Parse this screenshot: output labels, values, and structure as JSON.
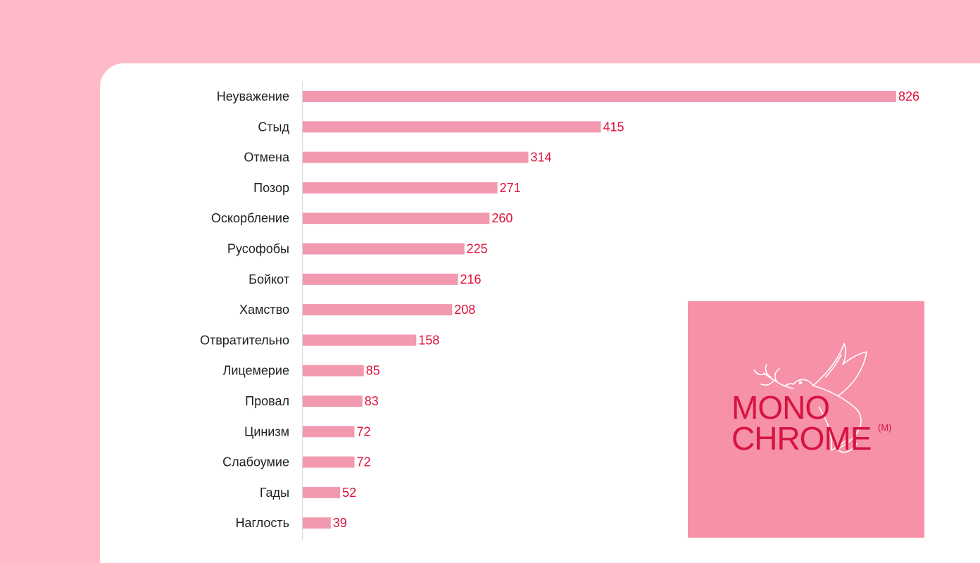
{
  "chart_data": {
    "type": "bar",
    "orientation": "horizontal",
    "categories": [
      "Неуважение",
      "Стыд",
      "Отмена",
      "Позор",
      "Оскорбление",
      "Русофобы",
      "Бойкот",
      "Хамство",
      "Отвратительно",
      "Лицемерие",
      "Провал",
      "Цинизм",
      "Слабоумие",
      "Гады",
      "Наглость"
    ],
    "values": [
      826,
      415,
      314,
      271,
      260,
      225,
      216,
      208,
      158,
      85,
      83,
      72,
      72,
      52,
      39
    ],
    "data_labels": true,
    "grid": false,
    "legend": "none",
    "colors": {
      "bar": "#f299b0",
      "value_label": "#e0103a",
      "category_label": "#1f1f1f"
    }
  },
  "logo": {
    "line1": "MONO",
    "line2": "CHROME",
    "mark": "(M)",
    "color": "#d6133f",
    "background": "#f691a7",
    "icon": "dove-with-olive-branch-icon"
  },
  "colors": {
    "page_background": "#ffbac8",
    "card_background": "#ffffff"
  }
}
